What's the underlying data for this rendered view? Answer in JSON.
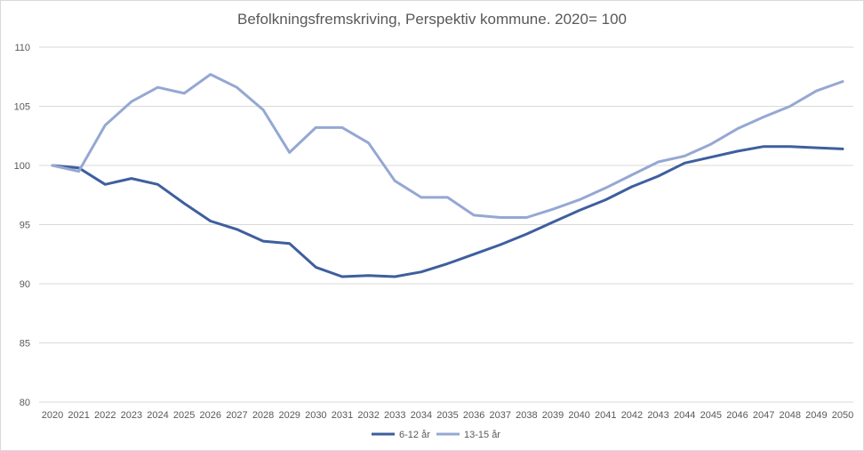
{
  "chart_data": {
    "type": "line",
    "title": "Befolkningsfremskriving, Perspektiv kommune. 2020= 100",
    "xlabel": "",
    "ylabel": "",
    "x": [
      "2020",
      "2021",
      "2022",
      "2023",
      "2024",
      "2025",
      "2026",
      "2027",
      "2028",
      "2029",
      "2030",
      "2031",
      "2032",
      "2033",
      "2034",
      "2035",
      "2036",
      "2037",
      "2038",
      "2039",
      "2040",
      "2041",
      "2042",
      "2043",
      "2044",
      "2045",
      "2046",
      "2047",
      "2048",
      "2049",
      "2050"
    ],
    "ylim": [
      80,
      110
    ],
    "yticks": [
      80,
      85,
      90,
      95,
      100,
      105,
      110
    ],
    "grid": true,
    "legend_position": "bottom",
    "series": [
      {
        "name": "6-12 år",
        "color": "#3e5f9e",
        "values": [
          100,
          99.8,
          98.4,
          98.9,
          98.4,
          96.8,
          95.3,
          94.6,
          93.6,
          93.4,
          91.4,
          90.6,
          90.7,
          90.6,
          91.0,
          91.7,
          92.5,
          93.3,
          94.2,
          95.2,
          96.2,
          97.1,
          98.2,
          99.1,
          100.2,
          100.7,
          101.2,
          101.6,
          101.6,
          101.5,
          101.4
        ]
      },
      {
        "name": "13-15 år",
        "color": "#95a8d3",
        "values": [
          100,
          99.5,
          103.4,
          105.4,
          106.6,
          106.1,
          107.7,
          106.6,
          104.7,
          101.1,
          103.2,
          103.2,
          101.9,
          98.7,
          97.3,
          97.3,
          95.8,
          95.6,
          95.6,
          96.3,
          97.1,
          98.1,
          99.2,
          100.3,
          100.8,
          101.8,
          103.1,
          104.1,
          105.0,
          106.3,
          107.1
        ]
      }
    ]
  }
}
